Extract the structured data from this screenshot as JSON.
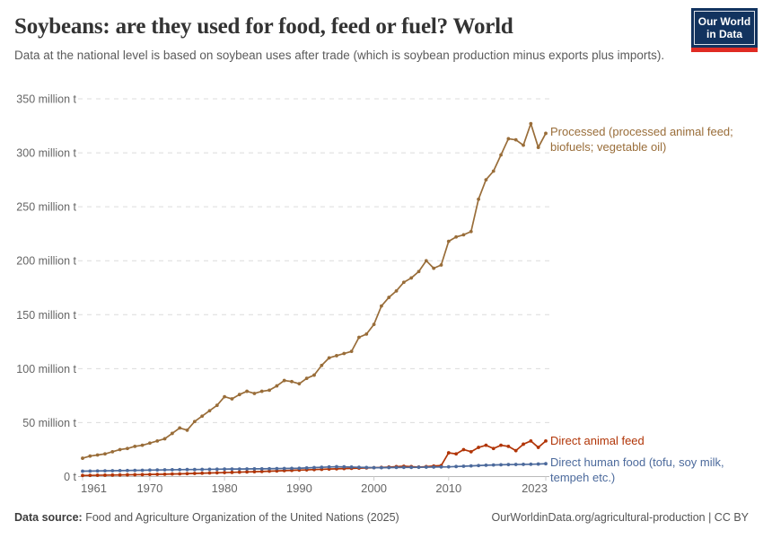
{
  "header": {
    "title": "Soybeans: are they used for food, feed or fuel? World",
    "subtitle": "Data at the national level is based on soybean uses after trade (which is soybean production minus exports plus imports).",
    "logo": {
      "line1": "Our World",
      "line2": "in Data",
      "bg_color": "#12335f",
      "stripe_color": "#e02b23"
    }
  },
  "footer": {
    "source_label": "Data source:",
    "source_text": " Food and Agriculture Organization of the United Nations (2025)",
    "link_text": "OurWorldinData.org/agricultural-production | CC BY"
  },
  "chart_data": {
    "type": "line",
    "title": "Soybeans: are they used for food, feed or fuel? World",
    "xlabel": "",
    "ylabel": "million t",
    "xlim": [
      1961,
      2023
    ],
    "ylim": [
      0,
      350
    ],
    "grid": "dashed horizontal gridlines",
    "legend_position": "right edge line labels",
    "xticks": [
      1961,
      1970,
      1980,
      1990,
      2000,
      2010,
      2023
    ],
    "yticks": [
      0,
      50,
      100,
      150,
      200,
      250,
      300,
      350
    ],
    "ytick_labels": [
      "0 t",
      "50 million t",
      "100 million t",
      "150 million t",
      "200 million t",
      "250 million t",
      "300 million t",
      "350 million t"
    ],
    "x": [
      1961,
      1962,
      1963,
      1964,
      1965,
      1966,
      1967,
      1968,
      1969,
      1970,
      1971,
      1972,
      1973,
      1974,
      1975,
      1976,
      1977,
      1978,
      1979,
      1980,
      1981,
      1982,
      1983,
      1984,
      1985,
      1986,
      1987,
      1988,
      1989,
      1990,
      1991,
      1992,
      1993,
      1994,
      1995,
      1996,
      1997,
      1998,
      1999,
      2000,
      2001,
      2002,
      2003,
      2004,
      2005,
      2006,
      2007,
      2008,
      2009,
      2010,
      2011,
      2012,
      2013,
      2014,
      2015,
      2016,
      2017,
      2018,
      2019,
      2020,
      2021,
      2022,
      2023
    ],
    "series": [
      {
        "name": "Processed (processed animal feed; biofuels; vegetable oil)",
        "label_lines": [
          "Processed (processed animal feed;",
          "biofuels; vegetable oil)"
        ],
        "color": "#996D39",
        "values": [
          17,
          19,
          20,
          21,
          23,
          25,
          26,
          28,
          29,
          31,
          33,
          35,
          40,
          45,
          43,
          51,
          56,
          61,
          66,
          74,
          72,
          76,
          79,
          77,
          79,
          80,
          84,
          89,
          88,
          86,
          91,
          94,
          103,
          110,
          112,
          114,
          116,
          129,
          132,
          141,
          158,
          166,
          172,
          180,
          184,
          190,
          200,
          193,
          196,
          218,
          222,
          224,
          227,
          257,
          275,
          283,
          298,
          313,
          312,
          307,
          327,
          305,
          318
        ]
      },
      {
        "name": "Direct animal feed",
        "label_lines": [
          "Direct animal feed"
        ],
        "color": "#B13507",
        "values": [
          1.0,
          1.1,
          1.2,
          1.3,
          1.4,
          1.5,
          1.6,
          1.7,
          1.8,
          2.0,
          2.1,
          2.2,
          2.4,
          2.5,
          2.7,
          2.9,
          3.1,
          3.3,
          3.5,
          3.7,
          3.9,
          4.1,
          4.3,
          4.5,
          4.7,
          5.0,
          5.2,
          5.5,
          5.7,
          6.0,
          6.2,
          6.5,
          6.7,
          7.0,
          7.2,
          7.4,
          7.6,
          7.8,
          8.0,
          8.2,
          8.5,
          8.8,
          9.2,
          9.6,
          9.2,
          8.8,
          9.2,
          9.8,
          10.2,
          22,
          21,
          25,
          23,
          27,
          29,
          26,
          29,
          28,
          24,
          30,
          33,
          27,
          33
        ]
      },
      {
        "name": "Direct human food (tofu, soy milk, tempeh etc.)",
        "label_lines": [
          "Direct human food (tofu, soy milk,",
          "tempeh etc.)"
        ],
        "color": "#4C6A9C",
        "values": [
          5.0,
          5.1,
          5.2,
          5.3,
          5.4,
          5.5,
          5.6,
          5.7,
          5.8,
          6.0,
          6.1,
          6.2,
          6.3,
          6.4,
          6.5,
          6.5,
          6.6,
          6.7,
          6.8,
          6.9,
          7.0,
          7.0,
          7.1,
          7.2,
          7.2,
          7.3,
          7.4,
          7.5,
          7.6,
          7.7,
          8.0,
          8.3,
          8.6,
          8.9,
          9.1,
          9.0,
          8.8,
          8.6,
          8.4,
          8.2,
          8.2,
          8.3,
          8.4,
          8.5,
          8.5,
          8.6,
          8.7,
          8.8,
          8.9,
          9.0,
          9.3,
          9.6,
          9.9,
          10.2,
          10.5,
          10.7,
          10.9,
          11.1,
          11.2,
          11.3,
          11.4,
          11.6,
          11.9
        ]
      }
    ]
  }
}
